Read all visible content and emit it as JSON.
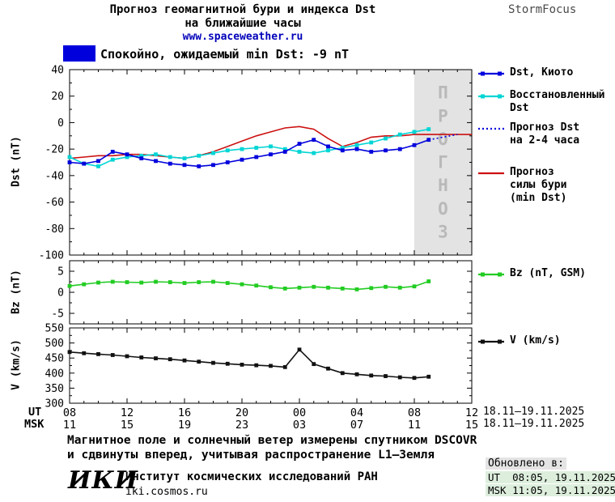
{
  "header": {
    "title_line1": "Прогноз геомагнитной бури и индекса Dst",
    "title_line2": "на ближайшие часы",
    "site": "www.spaceweather.ru",
    "brand": "StormFocus"
  },
  "status": {
    "text": "Спокойно, ожидаемый min Dst: -9 nT",
    "color": "#0000dd"
  },
  "chart_data": [
    {
      "type": "line",
      "name": "dst",
      "ylabel": "Dst (nT)",
      "xlim": [
        8,
        36
      ],
      "ylim": [
        -100,
        40
      ],
      "y_ticks": [
        40,
        20,
        0,
        -20,
        -40,
        -60,
        -80,
        -100
      ],
      "y_minor": [
        30,
        10,
        -10,
        -30,
        -50,
        -70,
        -90
      ],
      "forecast_region": [
        32,
        36
      ],
      "watermark": "ПРОГНОЗ",
      "series": [
        {
          "name": "Прогноз силы бури (min Dst)",
          "color": "#cc1111",
          "style": "solid",
          "marker": false,
          "x0": 8,
          "values": [
            -27,
            -26,
            -25,
            -25,
            -24,
            -24,
            -25,
            -26,
            -27,
            -25,
            -22,
            -18,
            -14,
            -10,
            -7,
            -4,
            -3,
            -5,
            -12,
            -18,
            -15,
            -11,
            -10,
            -10,
            -9,
            -9,
            -9,
            -9,
            -9
          ]
        },
        {
          "name": "Восстановленный Dst",
          "color": "#00d5d5",
          "style": "solid",
          "marker": true,
          "x0": 8,
          "values": [
            -26,
            -31,
            -33,
            -28,
            -26,
            -25,
            -24,
            -26,
            -27,
            -25,
            -23,
            -21,
            -20,
            -19,
            -18,
            -20,
            -22,
            -23,
            -21,
            -19,
            -17,
            -15,
            -12,
            -9,
            -7,
            -5
          ]
        },
        {
          "name": "Dst, Киото",
          "color": "#0000dd",
          "style": "solid",
          "marker": true,
          "x0": 8,
          "values": [
            -30,
            -31,
            -29,
            -22,
            -24,
            -27,
            -29,
            -31,
            -32,
            -33,
            -32,
            -30,
            -28,
            -26,
            -24,
            -22,
            -16,
            -13,
            -18,
            -21,
            -20,
            -22,
            -21,
            -20,
            -17,
            -13
          ]
        },
        {
          "name": "Прогноз Dst на 2-4 часа",
          "color": "#0000dd",
          "style": "dotted",
          "marker": false,
          "x0": 33,
          "values": [
            -13,
            -11,
            -9
          ]
        }
      ]
    },
    {
      "type": "line",
      "name": "bz",
      "ylabel": "Bz (nT)",
      "xlim": [
        8,
        36
      ],
      "ylim": [
        -7.5,
        7.5
      ],
      "y_ticks": [
        5,
        0,
        -5
      ],
      "y_minor": [
        2.5,
        -2.5
      ],
      "series": [
        {
          "name": "Bz (nT, GSM)",
          "color": "#22cc22",
          "style": "solid",
          "marker": true,
          "x0": 8,
          "values": [
            1.5,
            1.9,
            2.3,
            2.5,
            2.4,
            2.3,
            2.5,
            2.4,
            2.2,
            2.4,
            2.5,
            2.2,
            1.9,
            1.6,
            1.2,
            0.9,
            1.1,
            1.3,
            1.1,
            0.9,
            0.7,
            1.0,
            1.3,
            1.1,
            1.4,
            2.6
          ]
        }
      ]
    },
    {
      "type": "line",
      "name": "v",
      "ylabel": "V (km/s)",
      "xlim": [
        8,
        36
      ],
      "ylim": [
        300,
        550
      ],
      "y_ticks": [
        550,
        500,
        450,
        400,
        350,
        300
      ],
      "y_minor": [
        525,
        475,
        425,
        375,
        325
      ],
      "series": [
        {
          "name": "V (km/s)",
          "color": "#111111",
          "style": "solid",
          "marker": true,
          "x0": 8,
          "values": [
            470,
            466,
            463,
            460,
            456,
            452,
            449,
            446,
            442,
            438,
            434,
            431,
            428,
            426,
            424,
            420,
            478,
            430,
            415,
            400,
            396,
            392,
            390,
            386,
            384,
            388
          ]
        }
      ]
    }
  ],
  "x_axis": {
    "ticks": [
      8,
      12,
      16,
      20,
      24,
      28,
      32,
      36
    ],
    "ut": [
      "08",
      "12",
      "16",
      "20",
      "00",
      "04",
      "08",
      "12"
    ],
    "msk": [
      "11",
      "15",
      "19",
      "23",
      "03",
      "07",
      "11",
      "15"
    ],
    "ut_label": "UT",
    "msk_label": "MSK",
    "date_range": "18.11–19.11.2025"
  },
  "legend": {
    "items": [
      {
        "label": "Dst, Киото",
        "ref": "0:2"
      },
      {
        "label": "Восстановленный\nDst",
        "ref": "0:1"
      },
      {
        "label": "Прогноз Dst\nна 2-4 часа",
        "ref": "0:3"
      },
      {
        "label": "Прогноз\nсилы бури\n(min Dst)",
        "ref": "0:0"
      },
      {
        "label": "Bz (nT, GSM)",
        "ref": "1:0"
      },
      {
        "label": "V (km/s)",
        "ref": "2:0"
      }
    ]
  },
  "notes": {
    "line1": "Магнитное поле и солнечный ветер измерены спутником DSCOVR",
    "line2": "и сдвинуты вперед, учитывая распространение L1—Земля"
  },
  "footer": {
    "logo": "ИКИ",
    "institute": "Институт космических исследований РАН",
    "link": "iki.cosmos.ru",
    "updated_label": "Обновлено в:",
    "updated_ut": "UT  08:05, 19.11.2025",
    "updated_msk": "MSK 11:05, 19.11.2025"
  }
}
